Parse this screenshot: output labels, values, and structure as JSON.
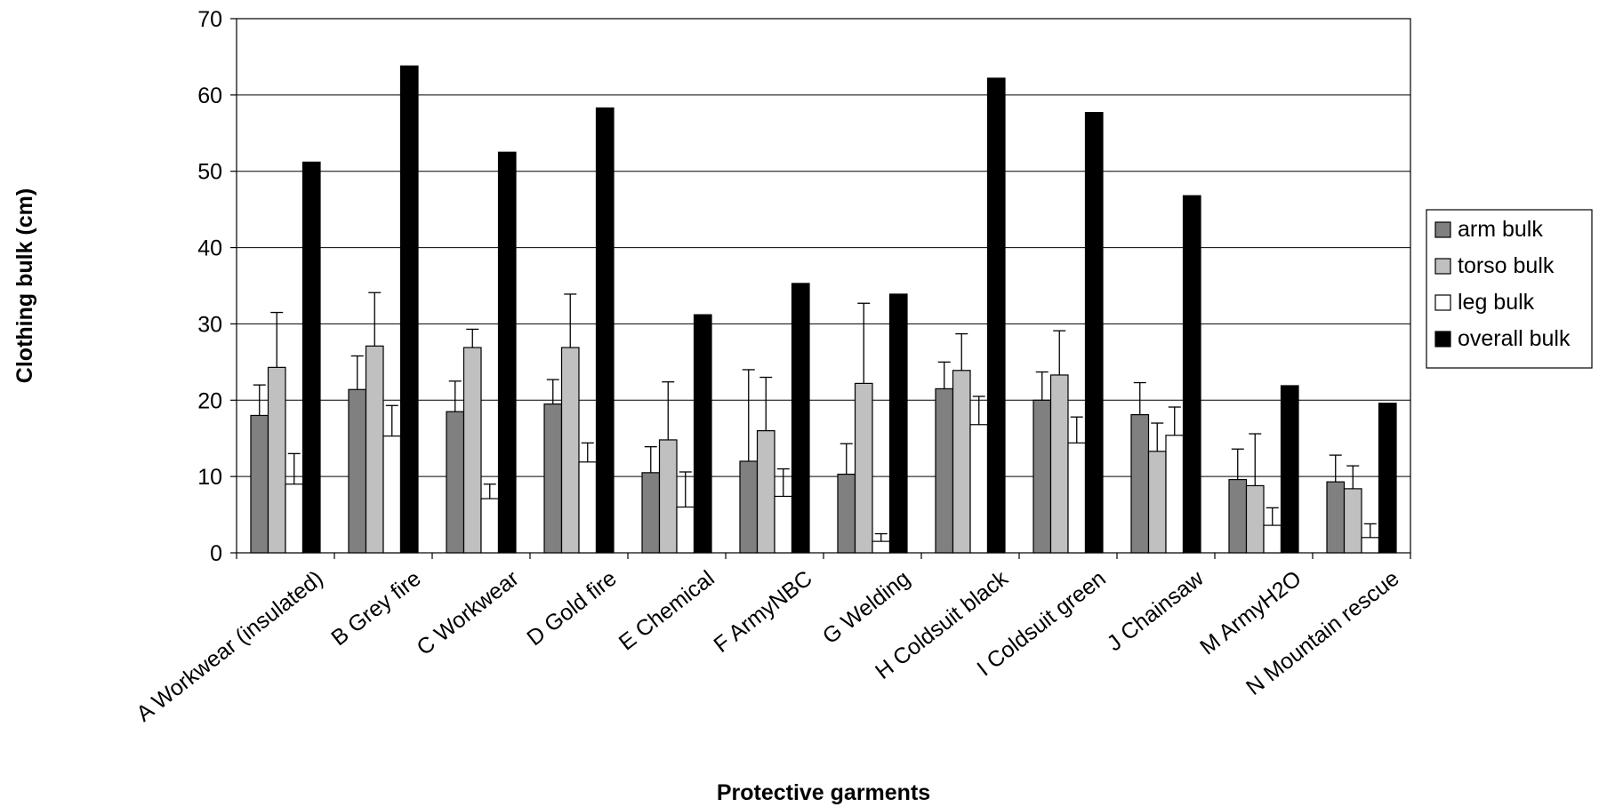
{
  "chart_data": {
    "type": "bar",
    "title": "",
    "xlabel": "Protective garments",
    "ylabel": "Clothing bulk (cm)",
    "ylim": [
      0,
      70
    ],
    "yticks": [
      0,
      10,
      20,
      30,
      40,
      50,
      60,
      70
    ],
    "grid": true,
    "legend_position": "right",
    "categories": [
      "A Workwear (insulated)",
      "B Grey fire",
      "C Workwear",
      "D Gold fire",
      "E Chemical",
      "F ArmyNBC",
      "G Welding",
      "H Coldsuit black",
      "I Coldsuit green",
      "J Chainsaw",
      "M ArmyH2O",
      "N Mountain rescue"
    ],
    "series": [
      {
        "name": "arm bulk",
        "color": "#808080",
        "values": [
          18.0,
          21.4,
          18.5,
          19.5,
          10.5,
          12.0,
          10.3,
          21.5,
          20.0,
          18.1,
          9.6,
          9.3
        ],
        "error": [
          4.0,
          4.4,
          4.0,
          3.2,
          3.4,
          12.0,
          4.0,
          3.5,
          3.7,
          4.2,
          4.0,
          3.5
        ]
      },
      {
        "name": "torso bulk",
        "color": "#c0c0c0",
        "values": [
          24.3,
          27.1,
          26.9,
          26.9,
          14.8,
          16.0,
          22.2,
          23.9,
          23.3,
          13.3,
          8.8,
          8.4
        ],
        "error": [
          7.2,
          7.0,
          2.4,
          7.0,
          7.6,
          7.0,
          10.5,
          4.8,
          5.8,
          3.7,
          6.8,
          3.0
        ]
      },
      {
        "name": "leg bulk",
        "color": "#ffffff",
        "values": [
          9.0,
          15.3,
          7.1,
          11.9,
          6.0,
          7.4,
          1.5,
          16.8,
          14.4,
          15.4,
          3.6,
          2.0
        ],
        "error": [
          4.0,
          4.0,
          1.9,
          2.5,
          4.6,
          3.6,
          1.0,
          3.7,
          3.4,
          3.7,
          2.3,
          1.8
        ]
      },
      {
        "name": "overall bulk",
        "color": "#000000",
        "values": [
          51.2,
          63.8,
          52.5,
          58.3,
          31.2,
          35.3,
          33.9,
          62.2,
          57.7,
          46.8,
          21.9,
          19.6
        ],
        "error": null
      }
    ]
  }
}
